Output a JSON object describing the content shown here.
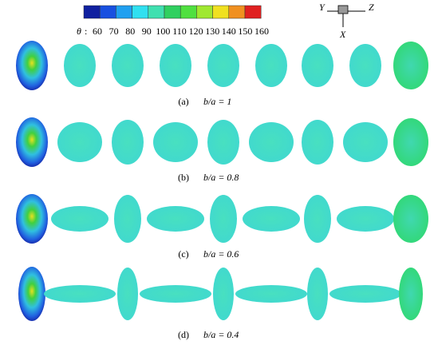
{
  "colorbar": {
    "symbol": "θ",
    "separator": ":",
    "labels": [
      "60",
      "70",
      "80",
      "90",
      "100",
      "110",
      "120",
      "130",
      "140",
      "150",
      "160"
    ]
  },
  "axes": {
    "y": "Y",
    "z": "Z",
    "x": "X"
  },
  "rows": [
    {
      "label": "(a)",
      "ratio": "b/a = 1"
    },
    {
      "label": "(b)",
      "ratio": "b/a = 0.8"
    },
    {
      "label": "(c)",
      "ratio": "b/a = 0.6"
    },
    {
      "label": "(d)",
      "ratio": "b/a = 0.4"
    }
  ]
}
